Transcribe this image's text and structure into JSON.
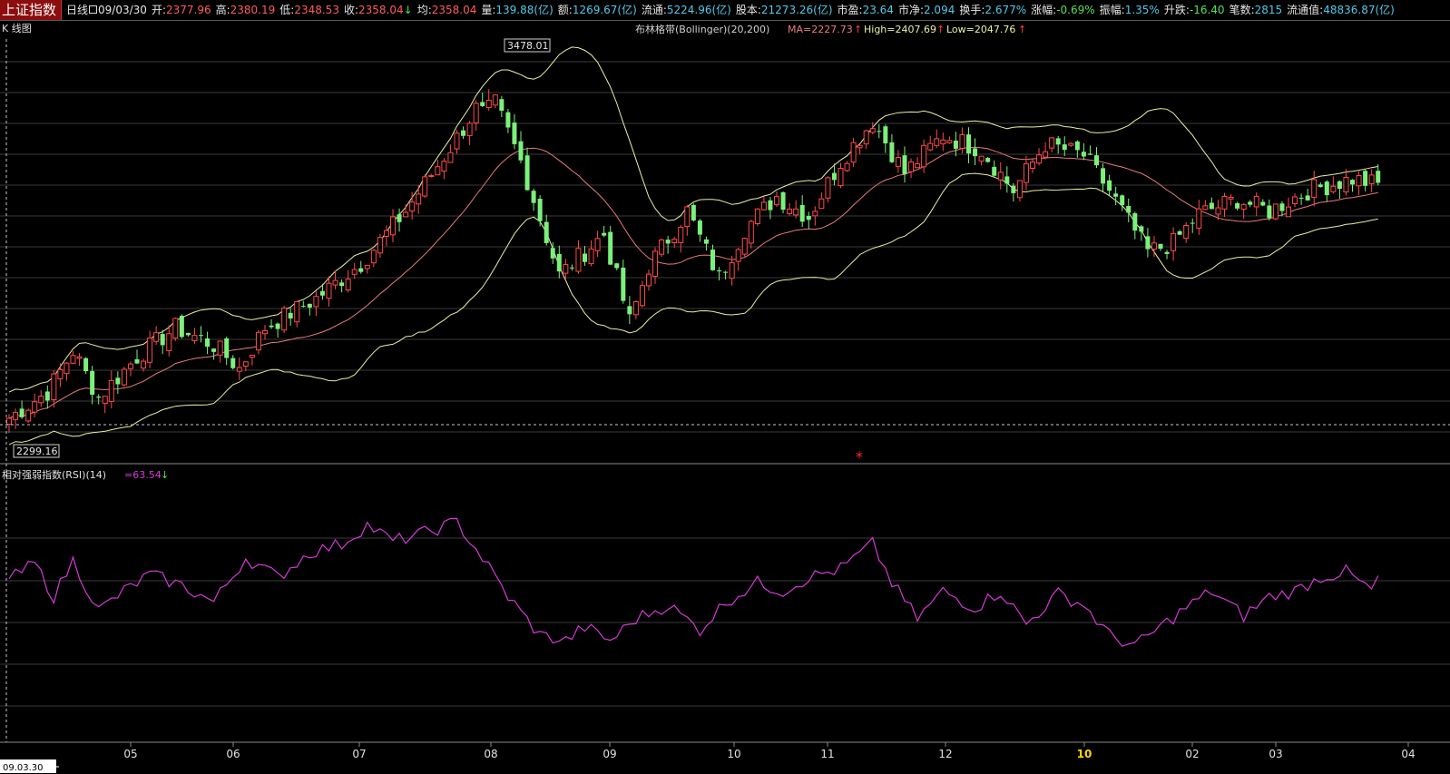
{
  "header": {
    "title": "上证指数",
    "period": "日线",
    "date": "09/03/30",
    "fields": [
      {
        "label": "开:",
        "value": "2377.96",
        "color": "red"
      },
      {
        "label": "高:",
        "value": "2380.19",
        "color": "red"
      },
      {
        "label": "低:",
        "value": "2348.53",
        "color": "red"
      },
      {
        "label": "收:",
        "value": "2358.04",
        "color": "red",
        "arrow": "down"
      },
      {
        "label": "均:",
        "value": "2358.04",
        "color": "red"
      },
      {
        "label": "量:",
        "value": "139.88(亿)",
        "color": "cyn"
      },
      {
        "label": "额:",
        "value": "1269.67(亿)",
        "color": "cyn"
      },
      {
        "label": "流通:",
        "value": "5224.96(亿)",
        "color": "cyn"
      },
      {
        "label": "股本:",
        "value": "21273.26(亿)",
        "color": "cyn"
      },
      {
        "label": "市盈:",
        "value": "23.64",
        "color": "cyn"
      },
      {
        "label": "市净:",
        "value": "2.094",
        "color": "cyn"
      },
      {
        "label": "换手:",
        "value": "2.677%",
        "color": "cyn"
      },
      {
        "label": "涨幅:",
        "value": "-0.69%",
        "color": "grn"
      },
      {
        "label": "振幅:",
        "value": "1.35%",
        "color": "cyn"
      },
      {
        "label": "升跌:",
        "value": "-16.40",
        "color": "grn"
      },
      {
        "label": "笔数:",
        "value": "2815",
        "color": "cyn"
      },
      {
        "label": "流通值:",
        "value": "48836.87(亿)",
        "color": "cyn"
      }
    ]
  },
  "colors": {
    "up": "#ff4a4a",
    "down": "#7cf07c",
    "ma": "#e77b7b",
    "bands": "#e8f0a0",
    "rsi": "#d43ad4",
    "grid": "#3a3a3a",
    "crosshair": "#c8c8c8"
  },
  "kline_panel": {
    "label": "K 线图",
    "legend": {
      "name": "布林格带(Bollinger)(20,200)",
      "ma_label": "MA=2227.73",
      "high_label": "High=2407.69",
      "low_label": "Low=2047.76",
      "arrow": "↑"
    },
    "max_label": "3478.01",
    "min_label": "2299.16",
    "marker": "*"
  },
  "rsi_panel": {
    "label": "相对强弱指数(RSI)(14)",
    "value_label": "=63.54",
    "arrow": "↓"
  },
  "x_axis": {
    "cursor_date": "09.03.30",
    "month_labels": [
      "05",
      "06",
      "07",
      "08",
      "09",
      "10",
      "11",
      "12",
      "10",
      "02",
      "03",
      "04"
    ],
    "highlight_index": 8
  },
  "chart_data": [
    {
      "type": "candlestick",
      "title": "K 线图",
      "ylim": [
        2200,
        3650
      ],
      "max_price": 3478.01,
      "min_price": 2299.16,
      "anchors": [
        {
          "x": 0,
          "price": 2350
        },
        {
          "x": 6,
          "price": 2440
        },
        {
          "x": 10,
          "price": 2580
        },
        {
          "x": 14,
          "price": 2420
        },
        {
          "x": 20,
          "price": 2560
        },
        {
          "x": 26,
          "price": 2660
        },
        {
          "x": 32,
          "price": 2600
        },
        {
          "x": 36,
          "price": 2520
        },
        {
          "x": 40,
          "price": 2660
        },
        {
          "x": 48,
          "price": 2760
        },
        {
          "x": 55,
          "price": 2880
        },
        {
          "x": 62,
          "price": 3060
        },
        {
          "x": 70,
          "price": 3310
        },
        {
          "x": 75,
          "price": 3478
        },
        {
          "x": 80,
          "price": 3230
        },
        {
          "x": 86,
          "price": 2840
        },
        {
          "x": 93,
          "price": 2980
        },
        {
          "x": 97,
          "price": 2680
        },
        {
          "x": 100,
          "price": 2870
        },
        {
          "x": 106,
          "price": 3060
        },
        {
          "x": 111,
          "price": 2830
        },
        {
          "x": 115,
          "price": 3000
        },
        {
          "x": 120,
          "price": 3110
        },
        {
          "x": 125,
          "price": 3040
        },
        {
          "x": 130,
          "price": 3230
        },
        {
          "x": 135,
          "price": 3370
        },
        {
          "x": 140,
          "price": 3190
        },
        {
          "x": 146,
          "price": 3320
        },
        {
          "x": 152,
          "price": 3270
        },
        {
          "x": 157,
          "price": 3130
        },
        {
          "x": 162,
          "price": 3290
        },
        {
          "x": 168,
          "price": 3250
        },
        {
          "x": 172,
          "price": 3130
        },
        {
          "x": 178,
          "price": 2920
        },
        {
          "x": 182,
          "price": 2950
        },
        {
          "x": 186,
          "price": 3050
        },
        {
          "x": 192,
          "price": 3100
        },
        {
          "x": 197,
          "price": 3060
        },
        {
          "x": 203,
          "price": 3130
        },
        {
          "x": 210,
          "price": 3170
        },
        {
          "x": 214,
          "price": 3150
        }
      ],
      "bollinger_note": "MA / High / Low bands per legend"
    },
    {
      "type": "line",
      "title": "相对强弱指数(RSI)(14)",
      "last_value": 63.54,
      "ylim": [
        0,
        100
      ],
      "anchors": [
        {
          "x": 0,
          "v": 62
        },
        {
          "x": 4,
          "v": 68
        },
        {
          "x": 7,
          "v": 56
        },
        {
          "x": 10,
          "v": 69
        },
        {
          "x": 14,
          "v": 51
        },
        {
          "x": 18,
          "v": 58
        },
        {
          "x": 22,
          "v": 64
        },
        {
          "x": 27,
          "v": 60
        },
        {
          "x": 32,
          "v": 54
        },
        {
          "x": 37,
          "v": 70
        },
        {
          "x": 42,
          "v": 63
        },
        {
          "x": 47,
          "v": 72
        },
        {
          "x": 52,
          "v": 75
        },
        {
          "x": 56,
          "v": 82
        },
        {
          "x": 60,
          "v": 76
        },
        {
          "x": 65,
          "v": 79
        },
        {
          "x": 70,
          "v": 83
        },
        {
          "x": 74,
          "v": 70
        },
        {
          "x": 78,
          "v": 56
        },
        {
          "x": 83,
          "v": 42
        },
        {
          "x": 87,
          "v": 40
        },
        {
          "x": 90,
          "v": 45
        },
        {
          "x": 94,
          "v": 40
        },
        {
          "x": 98,
          "v": 48
        },
        {
          "x": 103,
          "v": 53
        },
        {
          "x": 108,
          "v": 44
        },
        {
          "x": 112,
          "v": 54
        },
        {
          "x": 117,
          "v": 61
        },
        {
          "x": 121,
          "v": 58
        },
        {
          "x": 125,
          "v": 63
        },
        {
          "x": 130,
          "v": 66
        },
        {
          "x": 135,
          "v": 75
        },
        {
          "x": 138,
          "v": 61
        },
        {
          "x": 142,
          "v": 48
        },
        {
          "x": 146,
          "v": 58
        },
        {
          "x": 151,
          "v": 52
        },
        {
          "x": 155,
          "v": 58
        },
        {
          "x": 159,
          "v": 46
        },
        {
          "x": 164,
          "v": 57
        },
        {
          "x": 168,
          "v": 53
        },
        {
          "x": 172,
          "v": 42
        },
        {
          "x": 176,
          "v": 38
        },
        {
          "x": 180,
          "v": 45
        },
        {
          "x": 184,
          "v": 52
        },
        {
          "x": 188,
          "v": 58
        },
        {
          "x": 193,
          "v": 49
        },
        {
          "x": 197,
          "v": 56
        },
        {
          "x": 201,
          "v": 58
        },
        {
          "x": 205,
          "v": 63
        },
        {
          "x": 209,
          "v": 65
        },
        {
          "x": 213,
          "v": 58
        }
      ]
    }
  ]
}
